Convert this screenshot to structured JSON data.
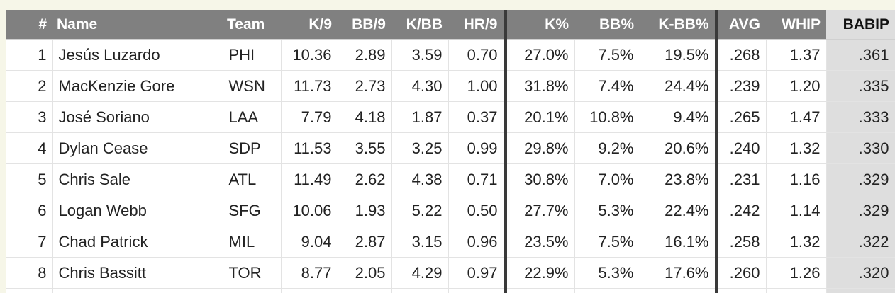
{
  "table": {
    "headers": [
      "#",
      "Name",
      "Team",
      "K/9",
      "BB/9",
      "K/BB",
      "HR/9",
      "K%",
      "BB%",
      "K-BB%",
      "AVG",
      "WHIP",
      "BABIP"
    ],
    "sorted_column": "BABIP",
    "rows": [
      [
        "1",
        "Jesús Luzardo",
        "PHI",
        "10.36",
        "2.89",
        "3.59",
        "0.70",
        "27.0%",
        "7.5%",
        "19.5%",
        ".268",
        "1.37",
        ".361"
      ],
      [
        "2",
        "MacKenzie Gore",
        "WSN",
        "11.73",
        "2.73",
        "4.30",
        "1.00",
        "31.8%",
        "7.4%",
        "24.4%",
        ".239",
        "1.20",
        ".335"
      ],
      [
        "3",
        "José Soriano",
        "LAA",
        "7.79",
        "4.18",
        "1.87",
        "0.37",
        "20.1%",
        "10.8%",
        "9.4%",
        ".265",
        "1.47",
        ".333"
      ],
      [
        "4",
        "Dylan Cease",
        "SDP",
        "11.53",
        "3.55",
        "3.25",
        "0.99",
        "29.8%",
        "9.2%",
        "20.6%",
        ".240",
        "1.32",
        ".330"
      ],
      [
        "5",
        "Chris Sale",
        "ATL",
        "11.49",
        "2.62",
        "4.38",
        "0.71",
        "30.8%",
        "7.0%",
        "23.8%",
        ".231",
        "1.16",
        ".329"
      ],
      [
        "6",
        "Logan Webb",
        "SFG",
        "10.06",
        "1.93",
        "5.22",
        "0.50",
        "27.7%",
        "5.3%",
        "22.4%",
        ".242",
        "1.14",
        ".329"
      ],
      [
        "7",
        "Chad Patrick",
        "MIL",
        "9.04",
        "2.87",
        "3.15",
        "0.96",
        "23.5%",
        "7.5%",
        "16.1%",
        ".258",
        "1.32",
        ".322"
      ],
      [
        "8",
        "Chris Bassitt",
        "TOR",
        "8.77",
        "2.05",
        "4.29",
        "0.97",
        "22.9%",
        "5.3%",
        "17.6%",
        ".260",
        "1.26",
        ".320"
      ]
    ]
  },
  "colors": {
    "header_bg": "#808080",
    "sorted_bg": "#dedede",
    "page_bg": "#f6f6e8",
    "separator": "#3a3a3a"
  }
}
